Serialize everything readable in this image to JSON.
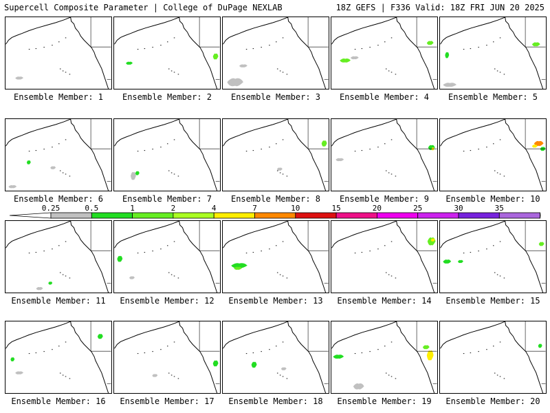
{
  "header": {
    "title_left": "Supercell Composite Parameter | College of DuPage NEXLAB",
    "title_right": "18Z GEFS | F336 Valid: 18Z FRI JUN 20 2025"
  },
  "panels": [
    {
      "label": "Ensemble Member: 1"
    },
    {
      "label": "Ensemble Member: 2"
    },
    {
      "label": "Ensemble Member: 3"
    },
    {
      "label": "Ensemble Member: 4"
    },
    {
      "label": "Ensemble Member: 5"
    },
    {
      "label": "Ensemble Member: 6"
    },
    {
      "label": "Ensemble Member: 7"
    },
    {
      "label": "Ensemble Member: 8"
    },
    {
      "label": "Ensemble Member: 9"
    },
    {
      "label": "Ensemble Member: 10"
    },
    {
      "label": "Ensemble Member: 11"
    },
    {
      "label": "Ensemble Member: 12"
    },
    {
      "label": "Ensemble Member: 13"
    },
    {
      "label": "Ensemble Member: 14"
    },
    {
      "label": "Ensemble Member: 15"
    },
    {
      "label": "Ensemble Member: 16"
    },
    {
      "label": "Ensemble Member: 17"
    },
    {
      "label": "Ensemble Member: 18"
    },
    {
      "label": "Ensemble Member: 19"
    },
    {
      "label": "Ensemble Member: 20"
    }
  ],
  "legend": {
    "ticks": [
      "0.25",
      "0.5",
      "1",
      "2",
      "4",
      "7",
      "10",
      "15",
      "20",
      "25",
      "30",
      "35"
    ],
    "colors": [
      "#c0c0c0",
      "#22dd22",
      "#66ee22",
      "#aaff22",
      "#ffee00",
      "#ff8800",
      "#dd1111",
      "#ee1188",
      "#ee00ee",
      "#cc22ee",
      "#7722dd",
      "#aa66dd"
    ],
    "tail_color": "#22dddd"
  }
}
